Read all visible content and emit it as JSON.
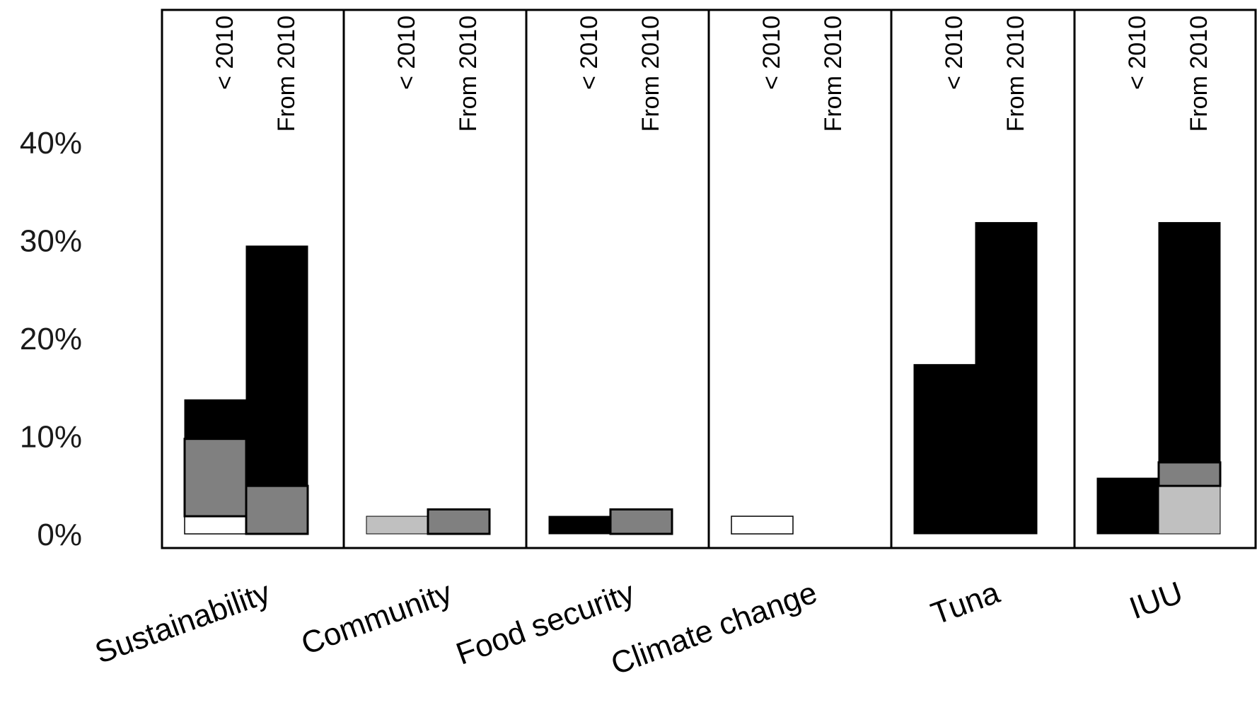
{
  "chart_data": {
    "type": "bar",
    "subtype": "stacked",
    "categories": [
      "Sustainability",
      "Community",
      "Food security",
      "Climate change",
      "Tuna",
      "IUU"
    ],
    "periods": [
      "< 2010",
      "From 2010"
    ],
    "ylim": [
      0,
      45
    ],
    "yticks": [
      "0%",
      "10%",
      "20%",
      "30%",
      "40%"
    ],
    "ytick_values": [
      0,
      10,
      20,
      30,
      40
    ],
    "segment_colors": {
      "white": "#ffffff",
      "light_grey": "#c0c0c0",
      "dark_grey": "#808080",
      "black": "#000000"
    },
    "bars": [
      {
        "category": "Sustainability",
        "period": "< 2010",
        "segments": [
          {
            "color": "white",
            "value": 1.8
          },
          {
            "color": "dark_grey",
            "value": 7.9
          },
          {
            "color": "black",
            "value": 4.0
          }
        ]
      },
      {
        "category": "Sustainability",
        "period": "From 2010",
        "segments": [
          {
            "color": "dark_grey",
            "value": 4.9
          },
          {
            "color": "black",
            "value": 24.5
          }
        ]
      },
      {
        "category": "Community",
        "period": "< 2010",
        "segments": [
          {
            "color": "light_grey",
            "value": 1.8
          }
        ]
      },
      {
        "category": "Community",
        "period": "From 2010",
        "segments": [
          {
            "color": "dark_grey",
            "value": 2.5
          }
        ]
      },
      {
        "category": "Food security",
        "period": "< 2010",
        "segments": [
          {
            "color": "black",
            "value": 1.8
          }
        ]
      },
      {
        "category": "Food security",
        "period": "From 2010",
        "segments": [
          {
            "color": "dark_grey",
            "value": 2.5
          }
        ]
      },
      {
        "category": "Climate change",
        "period": "< 2010",
        "segments": [
          {
            "color": "white",
            "value": 1.8
          }
        ]
      },
      {
        "category": "Tuna",
        "period": "< 2010",
        "segments": [
          {
            "color": "black",
            "value": 17.3
          }
        ]
      },
      {
        "category": "Tuna",
        "period": "From 2010",
        "segments": [
          {
            "color": "black",
            "value": 31.8
          }
        ]
      },
      {
        "category": "IUU",
        "period": "< 2010",
        "segments": [
          {
            "color": "black",
            "value": 5.7
          }
        ]
      },
      {
        "category": "IUU",
        "period": "From 2010",
        "segments": [
          {
            "color": "light_grey",
            "value": 4.9
          },
          {
            "color": "dark_grey",
            "value": 2.4
          },
          {
            "color": "black",
            "value": 24.5
          }
        ]
      }
    ]
  }
}
